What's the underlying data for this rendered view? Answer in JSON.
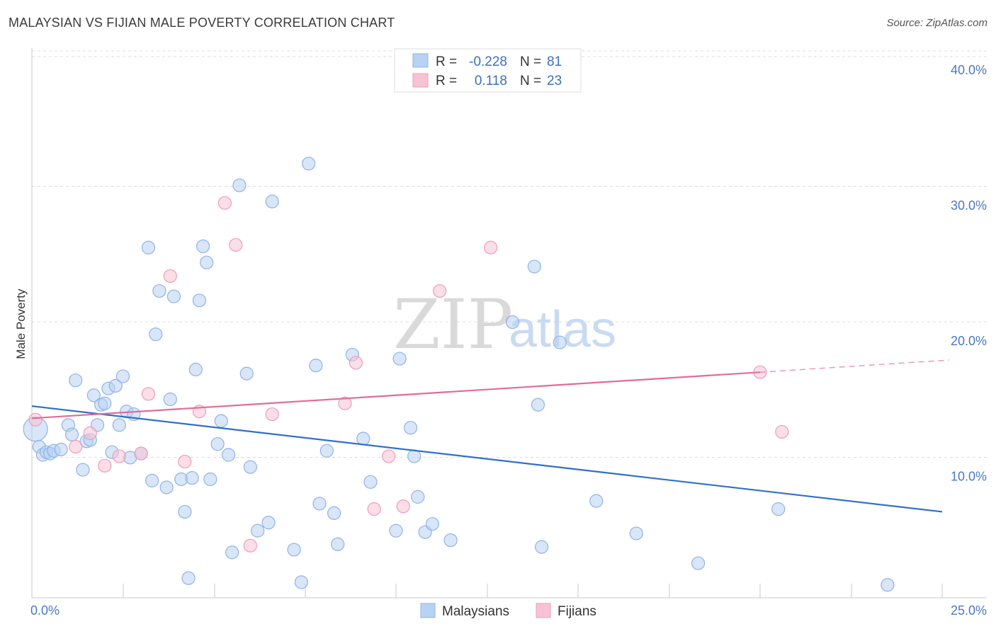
{
  "title": "MALAYSIAN VS FIJIAN MALE POVERTY CORRELATION CHART",
  "source": "Source: ZipAtlas.com",
  "watermark": {
    "zip": "ZIP",
    "atlas": "atlas"
  },
  "colors": {
    "malaysians_fill": "#b8d2f3",
    "malaysians_stroke": "#8fb3e6",
    "malaysians_line": "#2f6fce",
    "fijians_fill": "#f7c3d3",
    "fijians_stroke": "#ee9db7",
    "fijians_line": "#e26c94",
    "axis_text": "#4a78c4",
    "grid": "#dcdcdc"
  },
  "legend": {
    "rows": [
      {
        "r_label": "R =",
        "r_value": "-0.228",
        "n_label": "N =",
        "n_value": "81"
      },
      {
        "r_label": "R =",
        "r_value": "0.118",
        "n_label": "N =",
        "n_value": "23"
      }
    ]
  },
  "chart_data": {
    "type": "scatter",
    "title": "MALAYSIAN VS FIJIAN MALE POVERTY CORRELATION CHART",
    "xlabel": "",
    "ylabel": "Male Poverty",
    "xlim": [
      0,
      25
    ],
    "ylim": [
      0,
      40
    ],
    "x_tick_labels": [
      "0.0%",
      "25.0%"
    ],
    "y_tick_labels": [
      "10.0%",
      "20.0%",
      "30.0%",
      "40.0%"
    ],
    "y_ticks": [
      10,
      20,
      30,
      40
    ],
    "grid": true,
    "legend_position": "top-center",
    "series": [
      {
        "name": "Malaysians",
        "r": -0.228,
        "n": 81,
        "trend": {
          "x": [
            0,
            25
          ],
          "y": [
            14.2,
            6.4
          ]
        },
        "points": [
          [
            0.1,
            12.5
          ],
          [
            0.2,
            11.2
          ],
          [
            0.3,
            10.6
          ],
          [
            0.4,
            10.8
          ],
          [
            0.5,
            10.7
          ],
          [
            0.6,
            10.9
          ],
          [
            0.8,
            11.0
          ],
          [
            1.0,
            12.8
          ],
          [
            1.1,
            12.1
          ],
          [
            1.2,
            16.1
          ],
          [
            1.4,
            9.5
          ],
          [
            1.5,
            11.6
          ],
          [
            1.6,
            11.7
          ],
          [
            1.7,
            15.0
          ],
          [
            1.8,
            12.8
          ],
          [
            1.9,
            14.3
          ],
          [
            2.0,
            14.4
          ],
          [
            2.1,
            15.5
          ],
          [
            2.2,
            10.8
          ],
          [
            2.3,
            15.7
          ],
          [
            2.4,
            12.8
          ],
          [
            2.5,
            16.4
          ],
          [
            2.6,
            13.8
          ],
          [
            2.7,
            10.4
          ],
          [
            2.8,
            13.6
          ],
          [
            3.0,
            10.7
          ],
          [
            3.2,
            25.9
          ],
          [
            3.3,
            8.7
          ],
          [
            3.4,
            19.5
          ],
          [
            3.5,
            22.7
          ],
          [
            3.7,
            8.2
          ],
          [
            3.8,
            14.7
          ],
          [
            3.9,
            22.3
          ],
          [
            4.1,
            8.8
          ],
          [
            4.2,
            6.4
          ],
          [
            4.3,
            1.5
          ],
          [
            4.4,
            8.9
          ],
          [
            4.5,
            16.9
          ],
          [
            4.6,
            22.0
          ],
          [
            4.7,
            26.0
          ],
          [
            4.8,
            24.8
          ],
          [
            4.9,
            8.8
          ],
          [
            5.1,
            11.4
          ],
          [
            5.2,
            13.1
          ],
          [
            5.4,
            10.6
          ],
          [
            5.5,
            3.4
          ],
          [
            5.7,
            30.5
          ],
          [
            5.9,
            16.6
          ],
          [
            6.0,
            9.7
          ],
          [
            6.2,
            5.0
          ],
          [
            6.5,
            5.6
          ],
          [
            6.6,
            29.3
          ],
          [
            7.2,
            3.6
          ],
          [
            7.4,
            1.2
          ],
          [
            7.6,
            32.1
          ],
          [
            7.8,
            17.2
          ],
          [
            7.9,
            7.0
          ],
          [
            8.1,
            10.9
          ],
          [
            8.3,
            6.3
          ],
          [
            8.4,
            4.0
          ],
          [
            8.8,
            18.0
          ],
          [
            9.1,
            11.8
          ],
          [
            9.3,
            8.6
          ],
          [
            10.0,
            5.0
          ],
          [
            10.1,
            17.7
          ],
          [
            10.4,
            12.6
          ],
          [
            10.5,
            10.5
          ],
          [
            10.6,
            7.5
          ],
          [
            10.8,
            4.9
          ],
          [
            11.0,
            5.5
          ],
          [
            11.5,
            4.3
          ],
          [
            13.2,
            20.4
          ],
          [
            13.8,
            24.5
          ],
          [
            13.9,
            14.3
          ],
          [
            14.0,
            3.8
          ],
          [
            14.5,
            18.9
          ],
          [
            15.5,
            7.2
          ],
          [
            16.6,
            4.8
          ],
          [
            18.3,
            2.6
          ],
          [
            20.5,
            6.6
          ],
          [
            23.5,
            1.0
          ]
        ]
      },
      {
        "name": "Fijians",
        "r": 0.118,
        "n": 23,
        "trend": {
          "x": [
            0,
            20
          ],
          "y": [
            13.3,
            16.7
          ]
        },
        "trend_dashed": {
          "x": [
            20,
            25
          ],
          "y": [
            16.7,
            17.6
          ]
        },
        "points": [
          [
            0.1,
            13.2
          ],
          [
            1.2,
            11.2
          ],
          [
            1.6,
            12.2
          ],
          [
            2.0,
            9.8
          ],
          [
            2.4,
            10.5
          ],
          [
            3.0,
            10.7
          ],
          [
            3.2,
            15.1
          ],
          [
            3.8,
            23.8
          ],
          [
            4.2,
            10.1
          ],
          [
            4.6,
            13.8
          ],
          [
            5.3,
            29.2
          ],
          [
            5.6,
            26.1
          ],
          [
            6.0,
            3.9
          ],
          [
            6.6,
            13.6
          ],
          [
            8.6,
            14.4
          ],
          [
            8.9,
            17.4
          ],
          [
            9.4,
            6.6
          ],
          [
            9.8,
            10.5
          ],
          [
            10.2,
            6.8
          ],
          [
            11.2,
            22.7
          ],
          [
            12.6,
            25.9
          ],
          [
            20.0,
            16.7
          ],
          [
            20.6,
            12.3
          ]
        ]
      }
    ]
  },
  "bottom_legend": [
    {
      "label": "Malaysians"
    },
    {
      "label": "Fijians"
    }
  ]
}
